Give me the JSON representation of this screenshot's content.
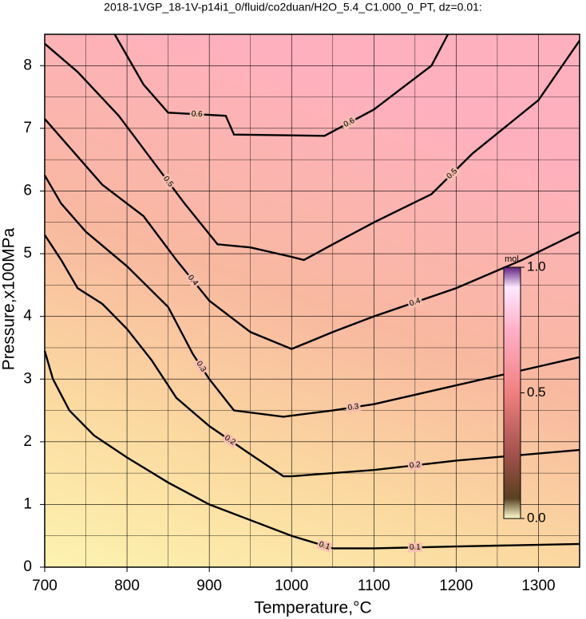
{
  "chart_data": {
    "type": "contour",
    "title": "2018-1VGP_18-1V-p14i1_0/fluid/co2duan/H2O_5.4_C1.000_0_PT, dz=0.01:",
    "x_label": "Temperature,°C",
    "y_label": "Pressure,x100MPa",
    "xlim": [
      700,
      1350
    ],
    "ylim": [
      0,
      8.5
    ],
    "xticks": [
      700,
      800,
      900,
      1000,
      1100,
      1200,
      1300
    ],
    "yticks": [
      0,
      1,
      2,
      3,
      4,
      5,
      6,
      7,
      8
    ],
    "xminorticks": [
      750,
      850,
      950,
      1050,
      1150,
      1250
    ],
    "yminorticks": [
      0.5,
      1.5,
      2.5,
      3.5,
      4.5,
      5.5,
      6.5,
      7.5
    ],
    "grid": true,
    "contours": [
      {
        "level": 0.1,
        "x": [
          700,
          710,
          730,
          760,
          800,
          850,
          900,
          950,
          1000,
          1030,
          1050,
          1100,
          1200,
          1350
        ],
        "y": [
          3.45,
          3.0,
          2.5,
          2.1,
          1.75,
          1.35,
          1.0,
          0.75,
          0.5,
          0.38,
          0.3,
          0.3,
          0.33,
          0.37
        ]
      },
      {
        "level": 0.2,
        "x": [
          700,
          720,
          740,
          770,
          800,
          830,
          860,
          900,
          950,
          990,
          1000,
          1100,
          1200,
          1350
        ],
        "y": [
          5.3,
          4.9,
          4.45,
          4.2,
          3.8,
          3.3,
          2.7,
          2.25,
          1.8,
          1.45,
          1.45,
          1.55,
          1.7,
          1.87
        ]
      },
      {
        "level": 0.3,
        "x": [
          700,
          720,
          750,
          800,
          850,
          880,
          900,
          930,
          990,
          1050,
          1100,
          1200,
          1350
        ],
        "y": [
          6.25,
          5.8,
          5.35,
          4.8,
          4.15,
          3.4,
          3.0,
          2.5,
          2.4,
          2.5,
          2.6,
          2.9,
          3.35
        ]
      },
      {
        "level": 0.4,
        "x": [
          700,
          730,
          770,
          820,
          860,
          900,
          950,
          1000,
          1050,
          1100,
          1200,
          1280,
          1350
        ],
        "y": [
          7.15,
          6.7,
          6.1,
          5.6,
          4.9,
          4.25,
          3.75,
          3.48,
          3.75,
          4.0,
          4.45,
          4.9,
          5.35
        ]
      },
      {
        "level": 0.5,
        "x": [
          700,
          740,
          790,
          830,
          870,
          910,
          950,
          1000,
          1015,
          1050,
          1100,
          1170,
          1220,
          1300,
          1350
        ],
        "y": [
          8.35,
          7.9,
          7.2,
          6.5,
          5.8,
          5.15,
          5.1,
          4.95,
          4.9,
          5.15,
          5.5,
          5.95,
          6.6,
          7.45,
          8.4
        ]
      },
      {
        "level": 0.6,
        "x": [
          785,
          820,
          850,
          920,
          930,
          1040,
          1100,
          1170,
          1190
        ],
        "y": [
          8.5,
          7.7,
          7.25,
          7.2,
          6.9,
          6.88,
          7.3,
          8.0,
          8.5
        ]
      }
    ],
    "colorbar": {
      "label": "mol",
      "lim": [
        0,
        1
      ],
      "ticks": [
        {
          "value": 0,
          "label": "0.0"
        },
        0.5,
        {
          "value": 1,
          "label": "1.0"
        }
      ]
    }
  }
}
